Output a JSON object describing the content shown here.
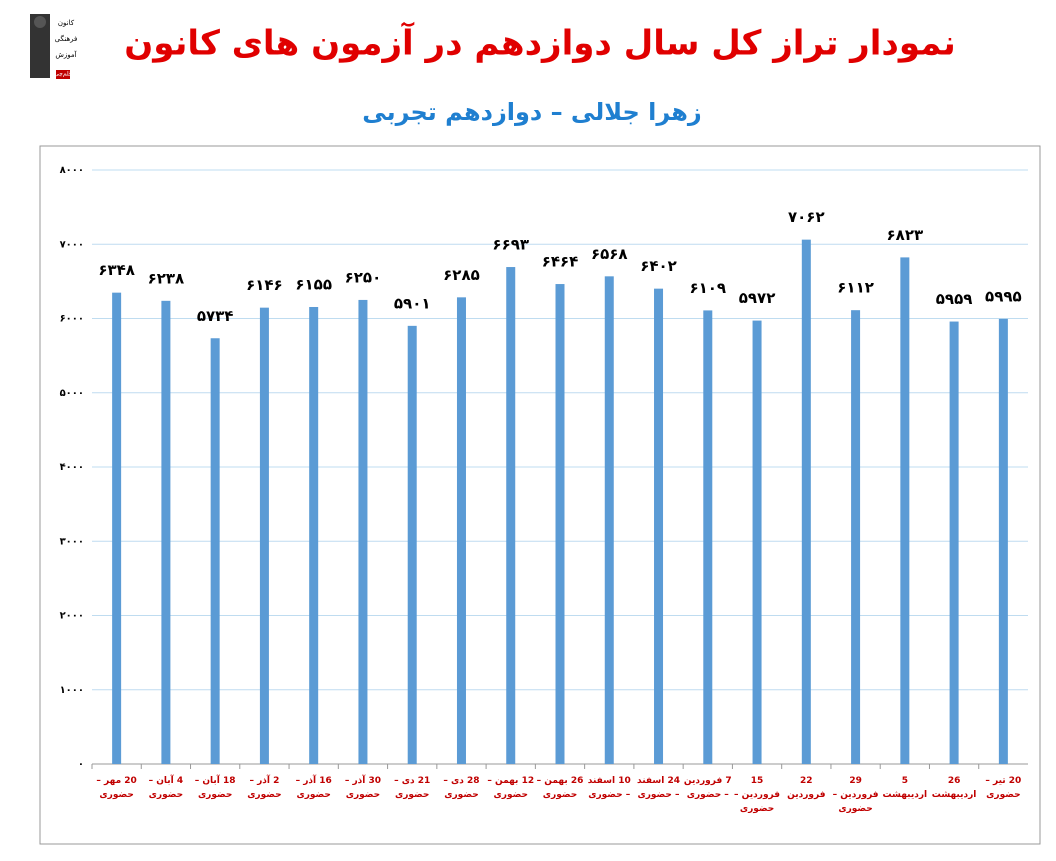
{
  "logo": {
    "lines": [
      "کانون",
      "فرهنگی",
      "آموزش",
      "قلم‌چی"
    ]
  },
  "chart_data": {
    "type": "bar",
    "title": "نمودار تراز کل سال دوازدهم در آزمون های کانون",
    "subtitle": "زهرا جلالی – دوازدهم تجربی",
    "categories": [
      "20 مهر – حضوری",
      "4 آبان – حضوری",
      "18 آبان – حضوری",
      "2 آذر – حضوری",
      "16 آذر – حضوری",
      "30 آذر – حضوری",
      "21 دی – حضوری",
      "28 دی – حضوری",
      "12 بهمن – حضوری",
      "26 بهمن – حضوری",
      "10 اسفند – حضوری",
      "24 اسفند – حضوری",
      "7 فروردین – حضوری",
      "15 فروردین – حضوری",
      "22 فروردین",
      "29 فروردین – حضوری",
      "5 اردیبهشت",
      "26 اردیبهشت",
      "20 تیر – حضوری"
    ],
    "values": [
      6348,
      6238,
      5734,
      6146,
      6155,
      6250,
      5901,
      6285,
      6693,
      6464,
      6568,
      6402,
      6109,
      5972,
      7062,
      6112,
      6823,
      5959,
      5995
    ],
    "value_labels": [
      "۶۳۴۸",
      "۶۲۳۸",
      "۵۷۳۴",
      "۶۱۴۶",
      "۶۱۵۵",
      "۶۲۵۰",
      "۵۹۰۱",
      "۶۲۸۵",
      "۶۶۹۳",
      "۶۴۶۴",
      "۶۵۶۸",
      "۶۴۰۲",
      "۶۱۰۹",
      "۵۹۷۲",
      "۷۰۶۲",
      "۶۱۱۲",
      "۶۸۲۳",
      "۵۹۵۹",
      "۵۹۹۵"
    ],
    "color": "#5b9bd5",
    "ylim": [
      0,
      8000
    ],
    "yticks": [
      {
        "value": 0,
        "label": "۰"
      },
      {
        "value": 1000,
        "label": "۱۰۰۰"
      },
      {
        "value": 2000,
        "label": "۲۰۰۰"
      },
      {
        "value": 3000,
        "label": "۳۰۰۰"
      },
      {
        "value": 4000,
        "label": "۴۰۰۰"
      },
      {
        "value": 5000,
        "label": "۵۰۰۰"
      },
      {
        "value": 6000,
        "label": "۶۰۰۰"
      },
      {
        "value": 7000,
        "label": "۷۰۰۰"
      },
      {
        "value": 8000,
        "label": "۸۰۰۰"
      }
    ],
    "grid": true
  }
}
